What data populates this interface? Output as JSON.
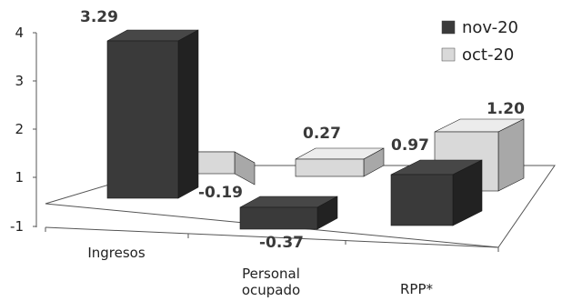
{
  "chart_data": {
    "type": "bar",
    "title": "",
    "xlabel": "",
    "ylabel": "",
    "categories": [
      "Ingresos",
      "Personal ocupado",
      "RPP*"
    ],
    "category_lines": [
      [
        "Ingresos"
      ],
      [
        "Personal",
        "ocupado"
      ],
      [
        "RPP*"
      ]
    ],
    "series": [
      {
        "name": "nov-20",
        "values": [
          3.29,
          -0.37,
          0.97
        ],
        "labels": [
          "3.29",
          "-0.37",
          "0.97"
        ],
        "color": "#3a3a3a"
      },
      {
        "name": "oct-20",
        "values": [
          -0.19,
          0.27,
          1.2
        ],
        "labels": [
          "-0.19",
          "0.27",
          "1.20"
        ],
        "color": "#d9d9d9"
      }
    ],
    "yticks": [
      -1,
      1,
      2,
      3,
      4
    ],
    "ylim": [
      -1,
      4
    ],
    "legend": "top-right",
    "grid": false,
    "three_d": true
  }
}
